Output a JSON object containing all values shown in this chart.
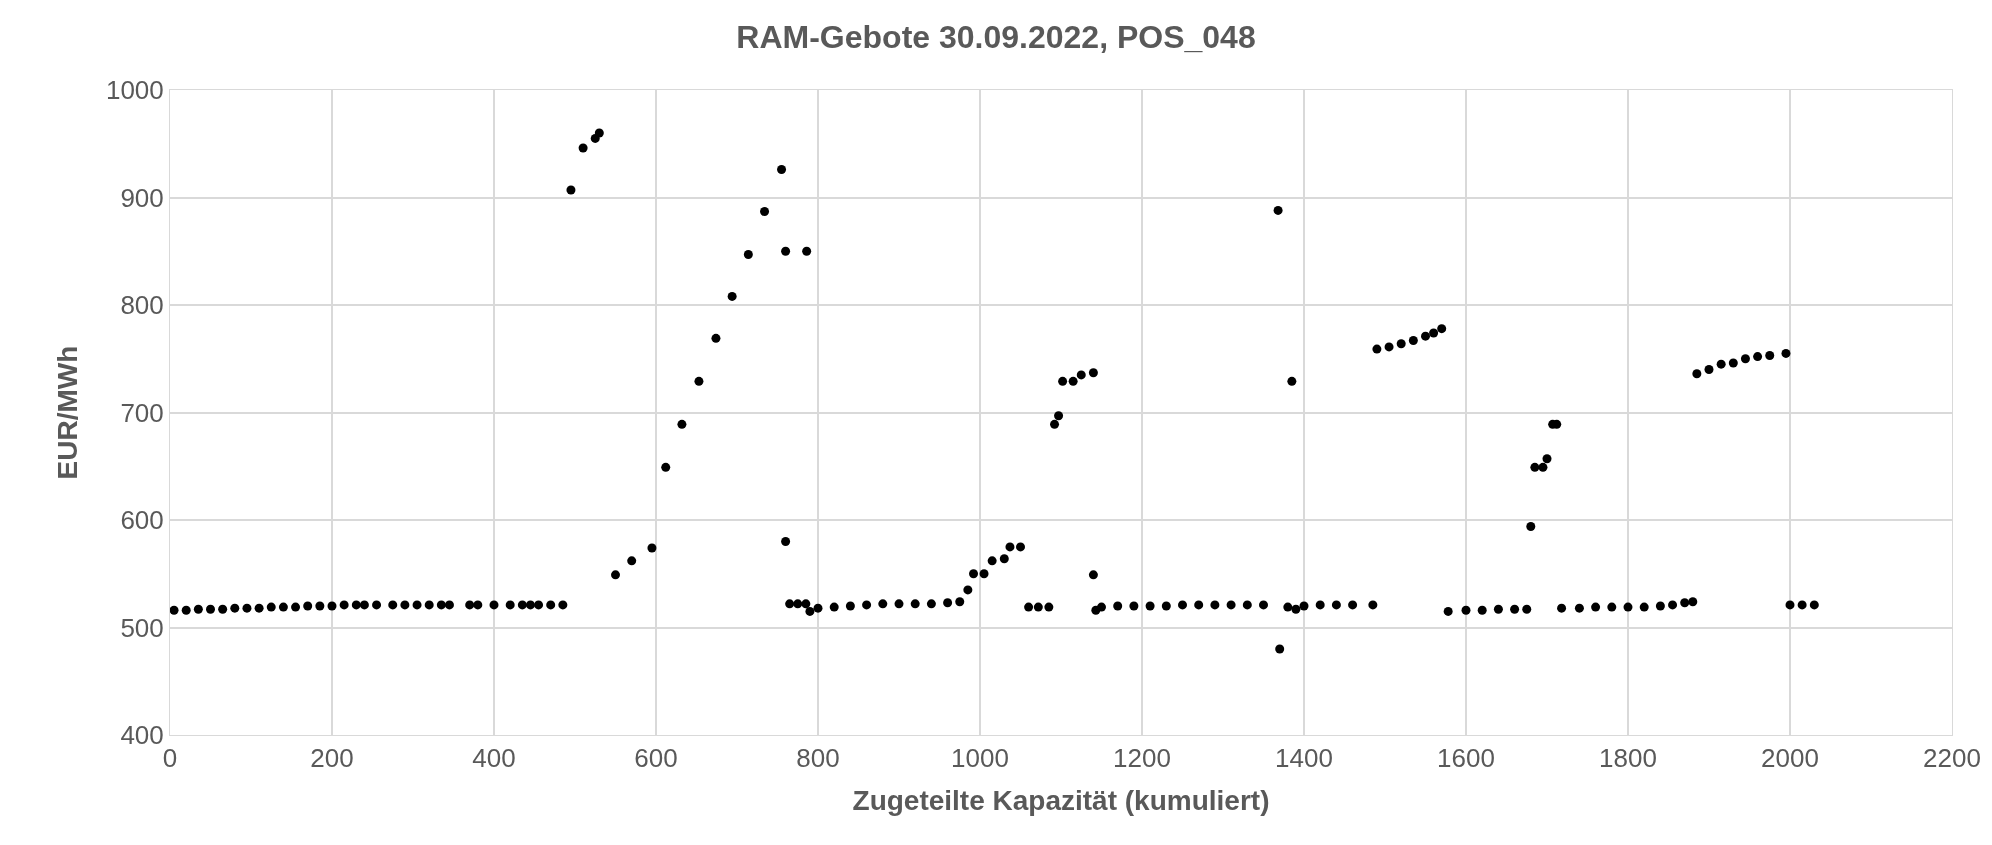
{
  "chart_data": {
    "type": "scatter",
    "title": "RAM-Gebote 30.09.2022, POS_048",
    "xlabel": "Zugeteilte Kapazität (kumuliert)",
    "ylabel": "EUR/MWh",
    "x": [
      5,
      20,
      35,
      50,
      65,
      80,
      95,
      110,
      125,
      140,
      155,
      170,
      185,
      200,
      215,
      230,
      240,
      255,
      275,
      290,
      305,
      320,
      335,
      345,
      370,
      380,
      400,
      420,
      435,
      445,
      455,
      470,
      485,
      495,
      510,
      525,
      530,
      550,
      570,
      595,
      612,
      632,
      653,
      674,
      694,
      714,
      734,
      755,
      760,
      786,
      760,
      765,
      775,
      785,
      790,
      800,
      820,
      840,
      860,
      880,
      900,
      920,
      940,
      960,
      975,
      985,
      992,
      1005,
      1015,
      1030,
      1037,
      1050,
      1060,
      1072,
      1085,
      1092,
      1097,
      1102,
      1115,
      1125,
      1140,
      1140,
      1143,
      1150,
      1170,
      1190,
      1210,
      1230,
      1250,
      1270,
      1290,
      1310,
      1330,
      1350,
      1368,
      1370,
      1380,
      1385,
      1390,
      1400,
      1420,
      1440,
      1460,
      1485,
      1490,
      1505,
      1520,
      1535,
      1550,
      1560,
      1570,
      1578,
      1600,
      1620,
      1640,
      1660,
      1675,
      1680,
      1685,
      1695,
      1700,
      1707,
      1712,
      1718,
      1740,
      1760,
      1780,
      1800,
      1820,
      1840,
      1855,
      1870,
      1880,
      1885,
      1900,
      1915,
      1930,
      1945,
      1960,
      1975,
      1995,
      2000,
      2015,
      2030
    ],
    "series": [
      {
        "color": "#000000",
        "values": [
          516,
          516,
          517,
          517,
          517,
          518,
          518,
          518,
          519,
          519,
          519,
          520,
          520,
          520,
          521,
          521,
          521,
          521,
          521,
          521,
          521,
          521,
          521,
          521,
          521,
          521,
          521,
          521,
          521,
          521,
          521,
          521,
          521,
          907,
          946,
          955,
          960,
          549,
          562,
          574,
          649,
          689,
          729,
          769,
          808,
          847,
          887,
          926,
          850,
          850,
          580,
          522,
          522,
          522,
          515,
          518,
          519,
          520,
          521,
          522,
          522,
          522,
          522,
          523,
          524,
          535,
          550,
          550,
          562,
          564,
          575,
          575,
          519,
          519,
          519,
          689,
          697,
          729,
          729,
          735,
          737,
          549,
          516,
          519,
          520,
          520,
          520,
          520,
          521,
          521,
          521,
          521,
          521,
          521,
          888,
          480,
          519,
          729,
          517,
          520,
          521,
          521,
          521,
          521,
          759,
          761,
          764,
          767,
          771,
          774,
          778,
          515,
          516,
          516,
          517,
          517,
          517,
          594,
          649,
          649,
          657,
          689,
          689,
          518,
          518,
          519,
          519,
          519,
          519,
          520,
          521,
          523,
          524,
          736,
          740,
          745,
          746,
          750,
          752,
          753,
          755,
          521,
          521,
          521
        ]
      }
    ],
    "xlim": [
      0,
      2200
    ],
    "xticks": [
      0,
      200,
      400,
      600,
      800,
      1000,
      1200,
      1400,
      1600,
      1800,
      2000,
      2200
    ],
    "ylim": [
      400,
      1000
    ],
    "yticks": [
      400,
      500,
      600,
      700,
      800,
      900,
      1000
    ],
    "grid": true,
    "legend": false,
    "marker": "circle"
  }
}
